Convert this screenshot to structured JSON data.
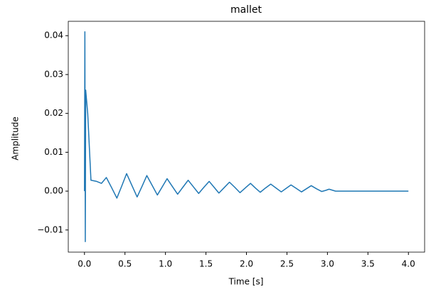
{
  "chart_data": {
    "type": "line",
    "title": "mallet",
    "x_label": "Time [s]",
    "y_label": "Amplitude",
    "xlim": [
      -0.2,
      4.2
    ],
    "ylim": [
      -0.0157,
      0.0437
    ],
    "xticks": [
      {
        "value": 0,
        "label": "0.0"
      },
      {
        "value": 0.5,
        "label": "0.5"
      },
      {
        "value": 1,
        "label": "1.0"
      },
      {
        "value": 1.5,
        "label": "1.5"
      },
      {
        "value": 2,
        "label": "2.0"
      },
      {
        "value": 2.5,
        "label": "2.5"
      },
      {
        "value": 3,
        "label": "3.0"
      },
      {
        "value": 3.5,
        "label": "3.5"
      },
      {
        "value": 4,
        "label": "4.0"
      }
    ],
    "yticks": [
      {
        "value": -0.01,
        "label": "−0.01"
      },
      {
        "value": 0,
        "label": "0.00"
      },
      {
        "value": 0.01,
        "label": "0.01"
      },
      {
        "value": 0.02,
        "label": "0.02"
      },
      {
        "value": 0.03,
        "label": "0.03"
      },
      {
        "value": 0.04,
        "label": "0.04"
      }
    ],
    "x": [
      0,
      0.005,
      0.01,
      0.015,
      0.04,
      0.08,
      0.15,
      0.21,
      0.27,
      0.335,
      0.4,
      0.46,
      0.52,
      0.585,
      0.65,
      0.71,
      0.77,
      0.835,
      0.9,
      0.96,
      1.02,
      1.085,
      1.15,
      1.215,
      1.28,
      1.345,
      1.41,
      1.475,
      1.54,
      1.6,
      1.66,
      1.725,
      1.79,
      1.855,
      1.92,
      1.985,
      2.05,
      2.11,
      2.17,
      2.235,
      2.3,
      2.365,
      2.43,
      2.49,
      2.55,
      2.615,
      2.68,
      2.74,
      2.8,
      2.865,
      2.93,
      2.98,
      3.02,
      3.1,
      4.0
    ],
    "series": [
      {
        "color": "#1f77b4",
        "values": [
          0,
          0.041,
          -0.013,
          0.026,
          0.02,
          0.0028,
          0.0025,
          0.002,
          0.0035,
          0.0009,
          -0.0018,
          0.0013,
          0.0045,
          0.0015,
          -0.0015,
          0.0012,
          0.004,
          0.0015,
          -0.001,
          0.0011,
          0.0032,
          0.0012,
          -0.0008,
          0.001,
          0.0028,
          0.0011,
          -0.0006,
          0.001,
          0.0025,
          0.001,
          -0.0005,
          0.0009,
          0.0023,
          0.001,
          -0.0004,
          0.0008,
          0.002,
          0.0008,
          -0.0003,
          0.0008,
          0.0018,
          0.0008,
          -0.0002,
          0.0007,
          0.0016,
          0.0007,
          -0.0002,
          0.0006,
          0.0014,
          0.0006,
          -0.0001,
          0.0002,
          0.0005,
          0,
          0
        ]
      }
    ]
  }
}
